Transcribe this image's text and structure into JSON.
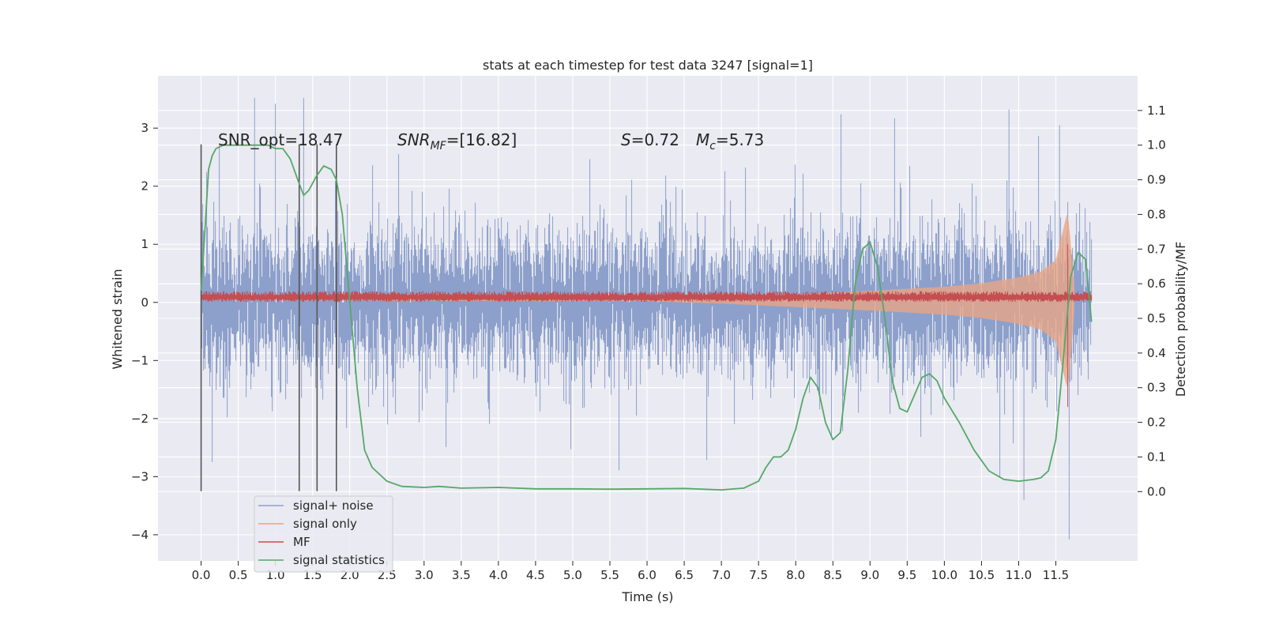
{
  "chart_data": {
    "type": "line",
    "title": "stats at each timestep for test data 3247 [signal=1]",
    "xlabel": "Time (s)",
    "ylabel": "Whitened strain",
    "ylabel_right": "Detection probability/MF",
    "xlim": [
      -0.58,
      12.6
    ],
    "ylim": [
      -4.45,
      3.9
    ],
    "ylim_right": [
      -0.2,
      1.2
    ],
    "x_ticks": [
      "0.0",
      "0.5",
      "1.0",
      "1.5",
      "2.0",
      "2.5",
      "3.0",
      "3.5",
      "4.0",
      "4.5",
      "5.0",
      "5.5",
      "6.0",
      "6.5",
      "7.0",
      "7.5",
      "8.0",
      "8.5",
      "9.0",
      "9.5",
      "10.0",
      "10.5",
      "11.0",
      "11.5"
    ],
    "y_ticks": [
      "3",
      "2",
      "1",
      "0",
      "−1",
      "−2",
      "−3",
      "−4"
    ],
    "y_ticks_right": [
      "1.1",
      "1.0",
      "0.9",
      "0.8",
      "0.7",
      "0.6",
      "0.5",
      "0.4",
      "0.3",
      "0.2",
      "0.1",
      "0.0"
    ],
    "grid": true,
    "legend_position": "lower-left",
    "annotations": {
      "snr_opt": "SNR_opt=18.47",
      "snr_mf_prefix": "SNR",
      "snr_mf_sub": "MF",
      "snr_mf_value": "=[16.82]",
      "s_prefix": "S",
      "s_value": "=0.72",
      "mc_prefix": "M",
      "mc_sub": "c",
      "mc_value": "=5.73"
    },
    "vertical_markers_x": [
      0.0,
      1.32,
      1.56,
      1.82
    ],
    "series": [
      {
        "name": "signal+ noise",
        "color": "#8da0cb",
        "description_envelope": {
          "x_range": [
            0.0,
            11.98
          ],
          "typical_amplitude": 1.5,
          "peak_max": 3.52,
          "peak_min": -4.08
        }
      },
      {
        "name": "signal only",
        "color": "#e8a586",
        "envelope": {
          "x": [
            0.0,
            6.0,
            7.0,
            8.0,
            9.0,
            10.0,
            10.5,
            11.0,
            11.3,
            11.5,
            11.65,
            11.68,
            11.75
          ],
          "amp": [
            0.0,
            0.01,
            0.05,
            0.11,
            0.17,
            0.24,
            0.3,
            0.4,
            0.5,
            0.7,
            1.5,
            1.3,
            0.2
          ]
        }
      },
      {
        "name": "MF",
        "color": "#c44e52",
        "description_level": {
          "x_range": [
            0.0,
            11.98
          ],
          "mean": 0.09,
          "ripple": 0.08
        }
      },
      {
        "name": "signal statistics",
        "color": "#55a868",
        "x": [
          0.0,
          0.05,
          0.1,
          0.15,
          0.2,
          0.3,
          0.4,
          0.5,
          0.7,
          0.9,
          1.0,
          1.1,
          1.2,
          1.3,
          1.38,
          1.45,
          1.55,
          1.65,
          1.75,
          1.82,
          1.9,
          2.0,
          2.1,
          2.2,
          2.3,
          2.5,
          2.7,
          3.0,
          3.2,
          3.5,
          4.0,
          4.5,
          5.0,
          5.5,
          6.0,
          6.5,
          7.0,
          7.3,
          7.5,
          7.6,
          7.7,
          7.8,
          7.9,
          8.0,
          8.1,
          8.2,
          8.3,
          8.4,
          8.5,
          8.6,
          8.7,
          8.8,
          8.9,
          9.0,
          9.1,
          9.2,
          9.3,
          9.4,
          9.5,
          9.6,
          9.7,
          9.8,
          9.9,
          10.0,
          10.2,
          10.4,
          10.6,
          10.8,
          11.0,
          11.2,
          11.3,
          11.4,
          11.5,
          11.6,
          11.7,
          11.8,
          11.9,
          11.98
        ],
        "y": [
          0.58,
          0.75,
          0.93,
          0.97,
          0.99,
          1.0,
          1.0,
          1.0,
          1.0,
          1.0,
          0.99,
          0.99,
          0.96,
          0.9,
          0.855,
          0.87,
          0.91,
          0.94,
          0.93,
          0.9,
          0.8,
          0.55,
          0.3,
          0.12,
          0.07,
          0.03,
          0.015,
          0.012,
          0.015,
          0.01,
          0.012,
          0.008,
          0.008,
          0.007,
          0.008,
          0.009,
          0.005,
          0.01,
          0.03,
          0.07,
          0.1,
          0.1,
          0.12,
          0.18,
          0.27,
          0.33,
          0.3,
          0.2,
          0.15,
          0.17,
          0.35,
          0.6,
          0.7,
          0.72,
          0.65,
          0.5,
          0.32,
          0.24,
          0.23,
          0.28,
          0.33,
          0.34,
          0.32,
          0.27,
          0.2,
          0.12,
          0.06,
          0.035,
          0.03,
          0.035,
          0.04,
          0.06,
          0.15,
          0.38,
          0.62,
          0.69,
          0.67,
          0.49
        ]
      }
    ]
  }
}
